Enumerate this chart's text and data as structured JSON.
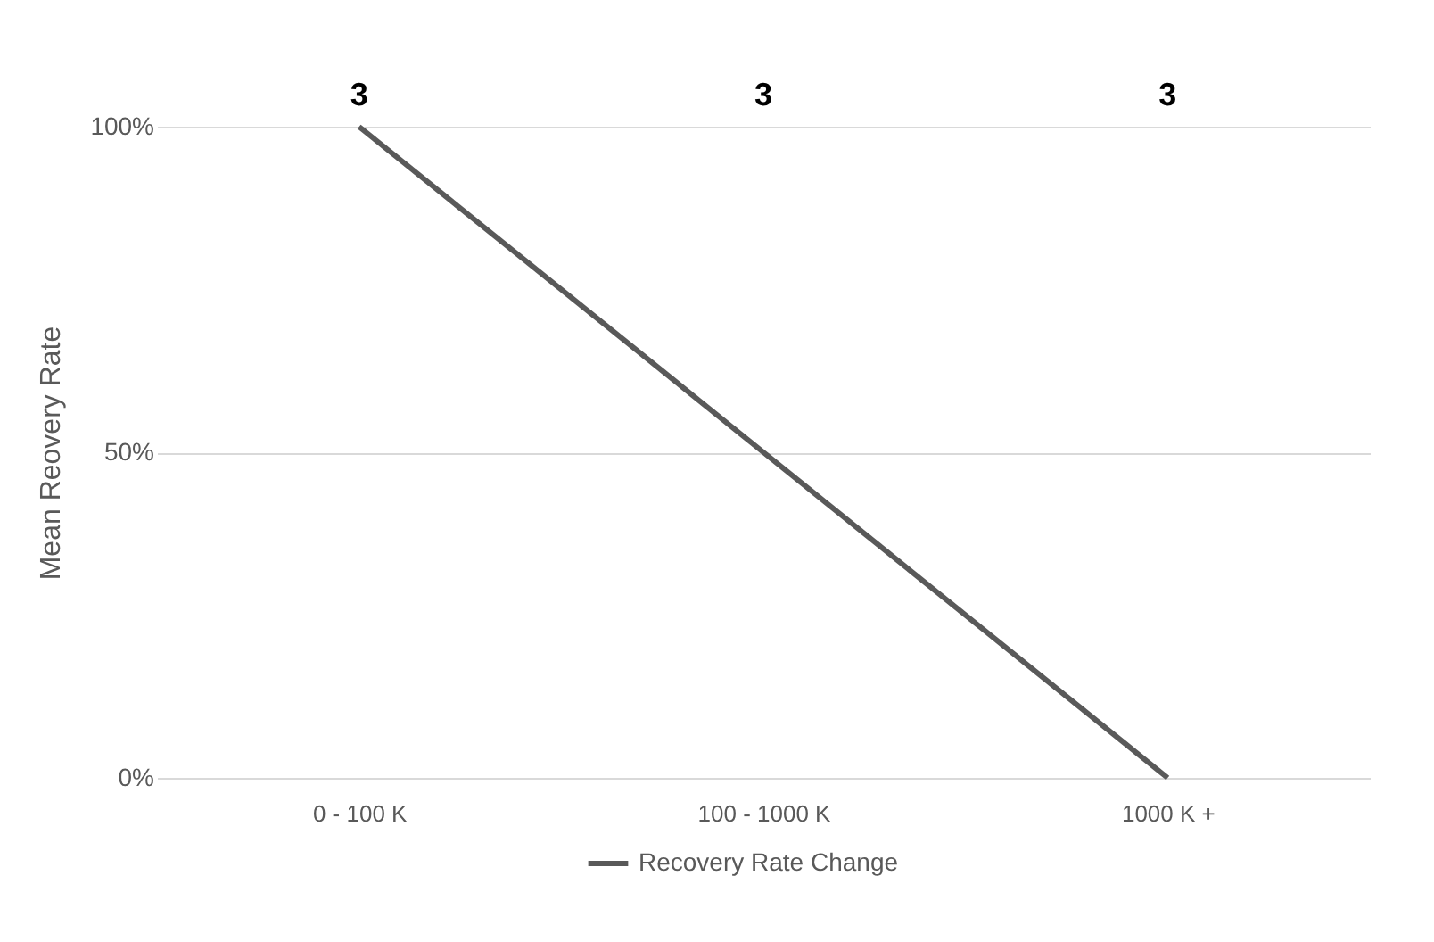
{
  "chart_data": {
    "type": "line",
    "ylabel": "Mean Reovery Rate",
    "categories": [
      "0 - 100 K",
      "100 - 1000 K",
      "1000 K +"
    ],
    "series": [
      {
        "name": "Recovery Rate Change",
        "color": "#595959",
        "values": [
          100,
          50,
          0
        ]
      }
    ],
    "ylim": [
      0,
      100
    ],
    "yticks": [
      {
        "value": 0,
        "label": "0%"
      },
      {
        "value": 50,
        "label": "50%"
      },
      {
        "value": 100,
        "label": "100%"
      }
    ],
    "grid": "y",
    "legend": "bottom",
    "marker": "none",
    "line_style": "solid",
    "annotations": [
      "3",
      "3",
      "3"
    ]
  }
}
